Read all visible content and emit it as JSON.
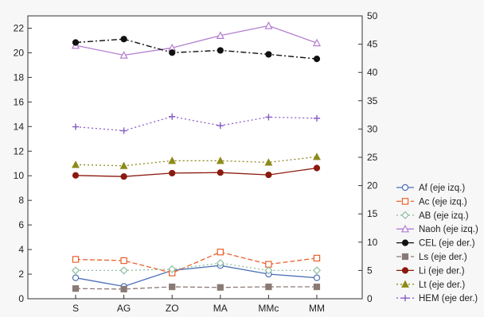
{
  "chart_data": {
    "type": "line",
    "title": "",
    "xlabel": "",
    "ylabel": "",
    "categories": [
      "S",
      "AG",
      "ZO",
      "MA",
      "MMc",
      "MM"
    ],
    "left_axis": {
      "ylim": [
        0,
        23
      ],
      "ticks": [
        0,
        2,
        4,
        6,
        8,
        10,
        12,
        14,
        16,
        18,
        20,
        22
      ]
    },
    "right_axis": {
      "ylim": [
        0,
        50
      ],
      "ticks": [
        0,
        5,
        10,
        15,
        20,
        25,
        30,
        35,
        40,
        45,
        50
      ]
    },
    "grid": false,
    "legend": "right",
    "series": [
      {
        "name": "Af (eje izq.)",
        "axis": "left",
        "color": "#4a6fb5",
        "marker": "circle-open",
        "dash": "solid",
        "values": [
          1.7,
          1.0,
          2.3,
          2.7,
          2.0,
          1.7
        ]
      },
      {
        "name": "Ac (eje izq.)",
        "axis": "left",
        "color": "#e8602c",
        "marker": "square-open",
        "dash": "dashed",
        "values": [
          3.2,
          3.1,
          2.1,
          3.8,
          2.8,
          3.3
        ]
      },
      {
        "name": "AB (eje izq.)",
        "axis": "left",
        "color": "#8fbfa0",
        "marker": "diamond-open",
        "dash": "dotted",
        "values": [
          2.3,
          2.3,
          2.4,
          2.9,
          2.3,
          2.3
        ]
      },
      {
        "name": "Naoh (eje izq.)",
        "axis": "left",
        "color": "#b37ed0",
        "marker": "triangle-open",
        "dash": "solid",
        "values": [
          20.6,
          19.8,
          20.4,
          21.4,
          22.2,
          20.8
        ]
      },
      {
        "name": "CEL (eje der.)",
        "axis": "right",
        "color": "#111111",
        "marker": "circle-filled",
        "dash": "dashdot",
        "values": [
          45.3,
          45.9,
          43.5,
          43.9,
          43.2,
          42.4
        ]
      },
      {
        "name": "Ls (eje der.)",
        "axis": "right",
        "color": "#8a7a76",
        "marker": "square-filled",
        "dash": "dashed",
        "values": [
          1.8,
          1.7,
          2.1,
          2.0,
          2.1,
          2.1
        ]
      },
      {
        "name": "Li (eje der.)",
        "axis": "right",
        "color": "#8b1a0e",
        "marker": "circle-filled",
        "dash": "solid",
        "values": [
          21.8,
          21.6,
          22.2,
          22.3,
          21.9,
          23.1
        ]
      },
      {
        "name": "Lt (eje der.)",
        "axis": "right",
        "color": "#8c8a1a",
        "marker": "triangle-filled",
        "dash": "dotted",
        "values": [
          23.7,
          23.5,
          24.4,
          24.4,
          24.1,
          25.1
        ]
      },
      {
        "name": "HEM (eje der.)",
        "axis": "right",
        "color": "#8a5cc6",
        "marker": "plus",
        "dash": "dotted",
        "values": [
          30.4,
          29.7,
          32.2,
          30.6,
          32.1,
          31.9
        ]
      }
    ]
  }
}
